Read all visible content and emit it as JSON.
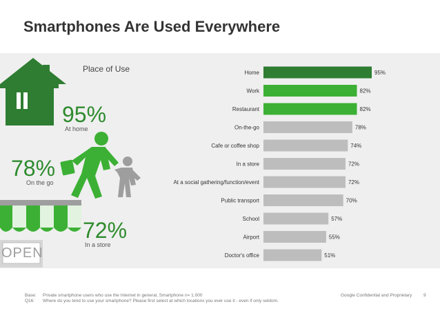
{
  "title": "Smartphones Are Used Everywhere",
  "place_label": "Place of Use",
  "callouts": [
    {
      "value": "95%",
      "caption": "At home"
    },
    {
      "value": "78%",
      "caption": "On the go"
    },
    {
      "value": "72%",
      "caption": "In a store"
    }
  ],
  "store_sign": "OPEN",
  "footer": {
    "base_label": "Base:",
    "base_text": "Private smartphone users who use the Internet in general, Smartphone n= 1.000",
    "q_label": "Q16:",
    "q_text": "Where do you tend to use your smartphone? Please first select at which locations you ever use it - even if only seldom.",
    "confidential": "Google Confidential and Proprietary",
    "page": "9"
  },
  "colors": {
    "dark_green": "#2e7d32",
    "green": "#4caf3f",
    "bright_green": "#3cb034",
    "gray_bar": "#bdbdbd",
    "panel_bg": "#efefef"
  },
  "chart_data": {
    "type": "bar",
    "orientation": "horizontal",
    "title": "",
    "xlabel": "",
    "ylabel": "",
    "xlim": [
      0,
      100
    ],
    "grid": false,
    "categories": [
      "Home",
      "Work",
      "Restaurant",
      "On-the-go",
      "Cafe or coffee shop",
      "In a store",
      "At a social gathering/function/event",
      "Public transport",
      "School",
      "Airport",
      "Doctor's office"
    ],
    "values": [
      95,
      82,
      82,
      78,
      74,
      72,
      72,
      70,
      57,
      55,
      51
    ],
    "value_labels": [
      "95%",
      "82%",
      "82%",
      "78%",
      "74%",
      "72%",
      "72%",
      "70%",
      "57%",
      "55%",
      "51%"
    ],
    "bar_colors": [
      "#2e7d32",
      "#3cb034",
      "#3cb034",
      "#bdbdbd",
      "#bdbdbd",
      "#bdbdbd",
      "#bdbdbd",
      "#bdbdbd",
      "#bdbdbd",
      "#bdbdbd",
      "#bdbdbd"
    ]
  }
}
